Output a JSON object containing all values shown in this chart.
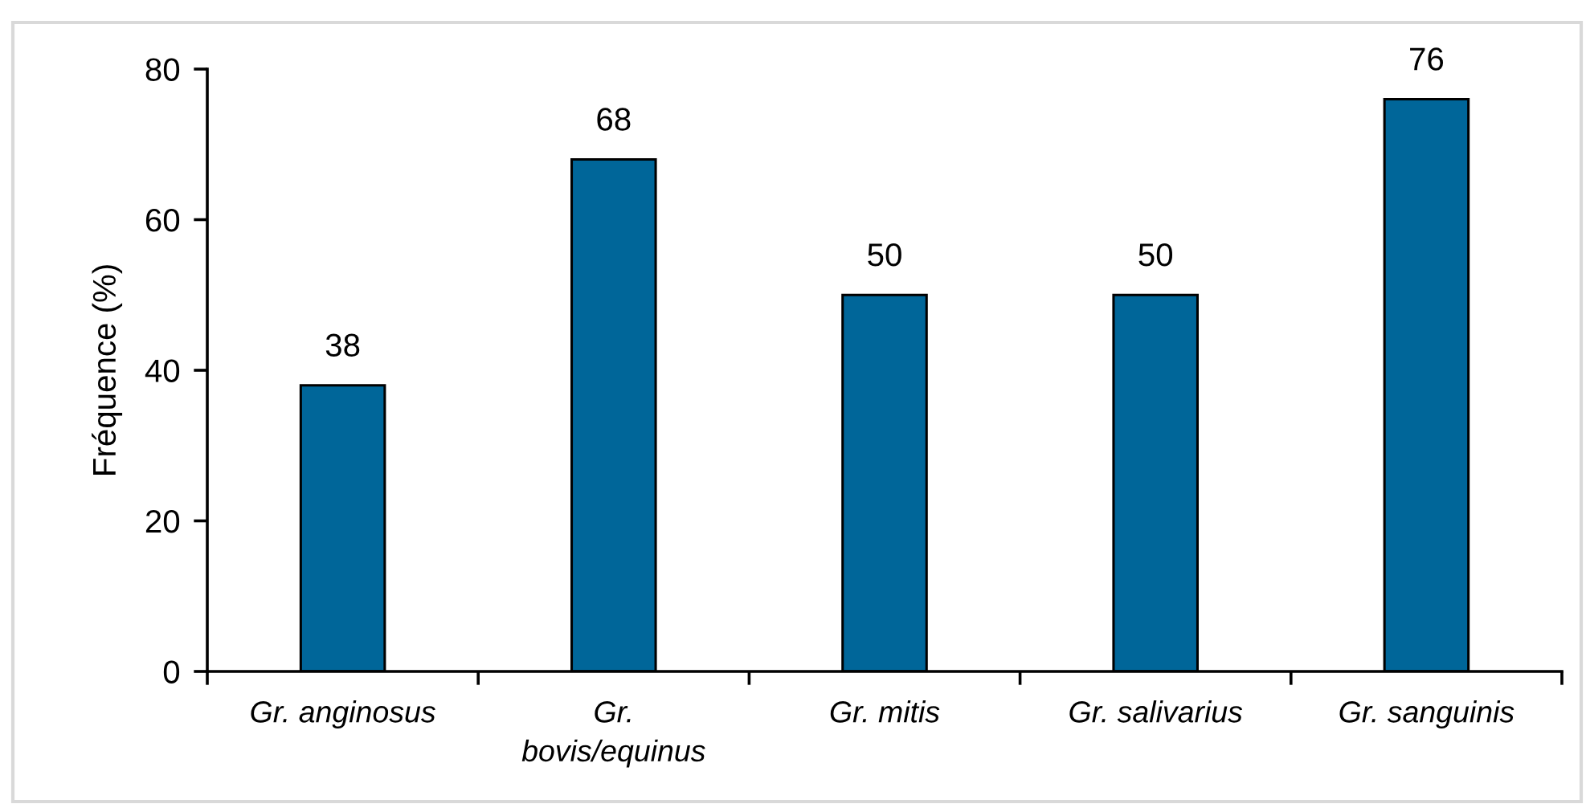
{
  "chart_data": {
    "type": "bar",
    "ylabel": "Fréquence (%)",
    "categories": [
      "Gr. anginosus",
      "Gr. bovis/equinus",
      "Gr. mitis",
      "Gr. salivarius",
      "Gr. sanguinis"
    ],
    "values": [
      38,
      68,
      50,
      50,
      76
    ],
    "color": "#006699",
    "ylim": [
      0,
      80
    ],
    "yticks": [
      0,
      20,
      40,
      60,
      80
    ],
    "data_labels": true
  }
}
